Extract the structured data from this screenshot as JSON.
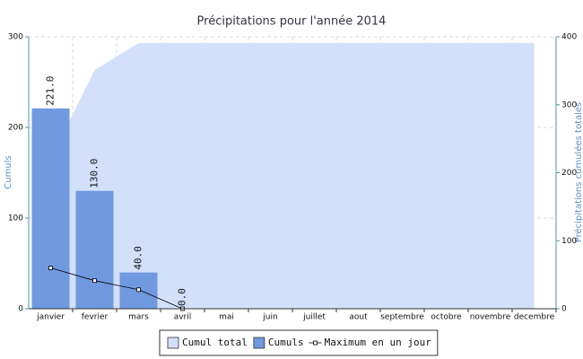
{
  "chart_data": {
    "type": "bar",
    "title": "Précipitations pour l'année 2014",
    "ylabel": "Cumuls",
    "y2label": "Précipitations cumulées totales",
    "categories": [
      "janvier",
      "fevrier",
      "mars",
      "avril",
      "mai",
      "juin",
      "juillet",
      "aout",
      "septembre",
      "octobre",
      "novembre",
      "decembre"
    ],
    "ylim": [
      0,
      300
    ],
    "yticks": [
      0,
      100,
      200,
      300
    ],
    "y2lim": [
      0,
      400
    ],
    "y2ticks": [
      0,
      100,
      200,
      300,
      400
    ],
    "grid": true,
    "legend": "bottom",
    "series": [
      {
        "name": "Cumul total",
        "type": "area",
        "axis": "y2",
        "color": "#d2e0fa",
        "values": [
          221,
          351,
          391,
          391,
          391,
          391,
          391,
          391,
          391,
          391,
          391,
          391
        ]
      },
      {
        "name": "Cumuls",
        "type": "bar",
        "color": "#7099e0",
        "values": [
          221,
          130,
          40,
          0,
          null,
          null,
          null,
          null,
          null,
          null,
          null,
          null
        ],
        "value_labels": [
          "221.0",
          "130.0",
          "40.0",
          "0.0",
          null,
          null,
          null,
          null,
          null,
          null,
          null,
          null
        ]
      },
      {
        "name": "Maximum en un jour",
        "type": "line",
        "color": "#000000",
        "values": [
          45,
          31,
          21,
          0,
          null,
          null,
          null,
          null,
          null,
          null,
          null,
          null
        ]
      }
    ]
  }
}
